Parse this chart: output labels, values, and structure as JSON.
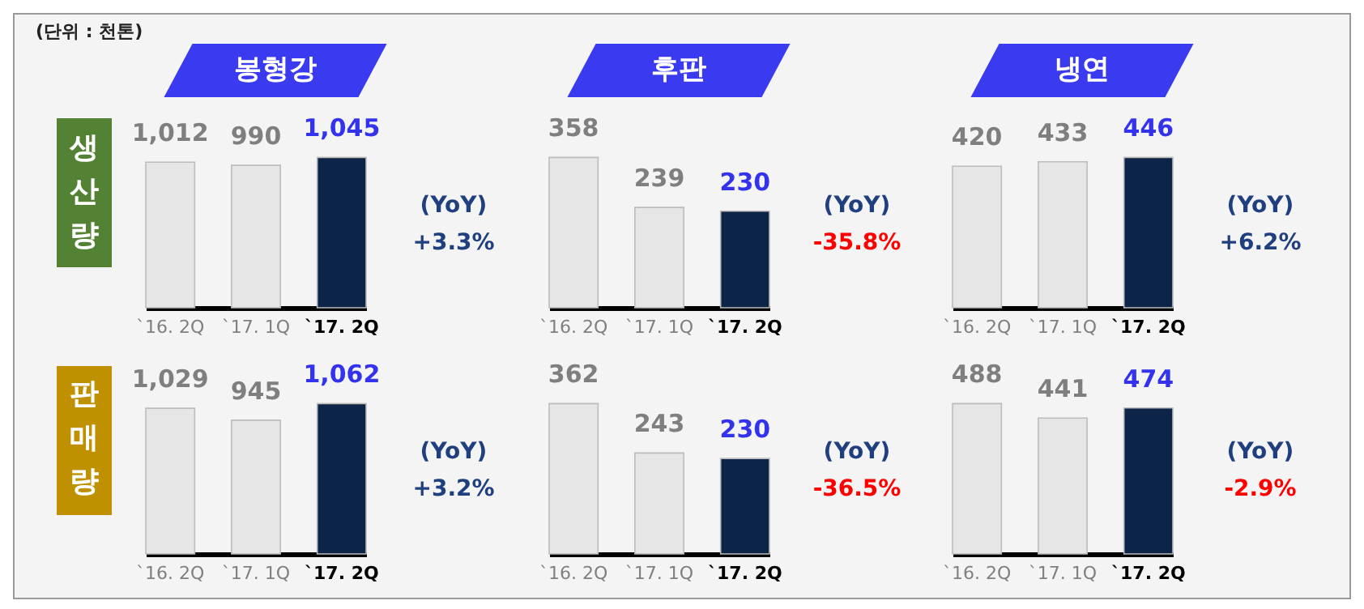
{
  "chart_data": [
    {
      "type": "bar",
      "title": "봉형강",
      "ylabel": "생산량",
      "categories": [
        "`16. 2Q",
        "`17. 1Q",
        "`17. 2Q"
      ],
      "values": [
        1012,
        990,
        1045
      ],
      "value_labels": [
        "1,012",
        "990",
        "1,045"
      ],
      "colors": [
        "#e6e6e6",
        "#e6e6e6",
        "#0c2447"
      ],
      "data_labels": true,
      "annotations": [
        "(YoY)",
        "+3.3%",
        "(단위 : 천톤)"
      ]
    },
    {
      "type": "bar",
      "title": "후판",
      "categories": [
        "`16. 2Q",
        "`17. 1Q",
        "`17. 2Q"
      ],
      "values": [
        358,
        239,
        230
      ],
      "colors": [
        "#e6e6e6",
        "#e6e6e6",
        "#0c2447"
      ],
      "data_labels": true,
      "annotations": [
        "(YoY)",
        "-35.8%"
      ]
    },
    {
      "type": "bar",
      "title": "냉연",
      "categories": [
        "`16. 2Q",
        "`17. 1Q",
        "`17. 2Q"
      ],
      "values": [
        420,
        433,
        446
      ],
      "colors": [
        "#e6e6e6",
        "#e6e6e6",
        "#0c2447"
      ],
      "data_labels": true,
      "annotations": [
        "(YoY)",
        "+6.2%"
      ]
    },
    {
      "type": "bar",
      "ylabel": "판매량",
      "categories": [
        "`16. 2Q",
        "`17. 1Q",
        "`17. 2Q"
      ],
      "values": [
        1029,
        945,
        1062
      ],
      "value_labels": [
        "1,029",
        "945",
        "1,062"
      ],
      "colors": [
        "#e6e6e6",
        "#e6e6e6",
        "#0c2447"
      ],
      "data_labels": true,
      "annotations": [
        "(YoY)",
        "+3.2%"
      ]
    },
    {
      "type": "bar",
      "categories": [
        "`16. 2Q",
        "`17. 1Q",
        "`17. 2Q"
      ],
      "values": [
        362,
        243,
        230
      ],
      "colors": [
        "#e6e6e6",
        "#e6e6e6",
        "#0c2447"
      ],
      "data_labels": true,
      "annotations": [
        "(YoY)",
        "-36.5%"
      ]
    },
    {
      "type": "bar",
      "categories": [
        "`16. 2Q",
        "`17. 1Q",
        "`17. 2Q"
      ],
      "values": [
        488,
        441,
        474
      ],
      "colors": [
        "#e6e6e6",
        "#e6e6e6",
        "#0c2447"
      ],
      "data_labels": true,
      "annotations": [
        "(YoY)",
        "-2.9%"
      ]
    }
  ]
}
